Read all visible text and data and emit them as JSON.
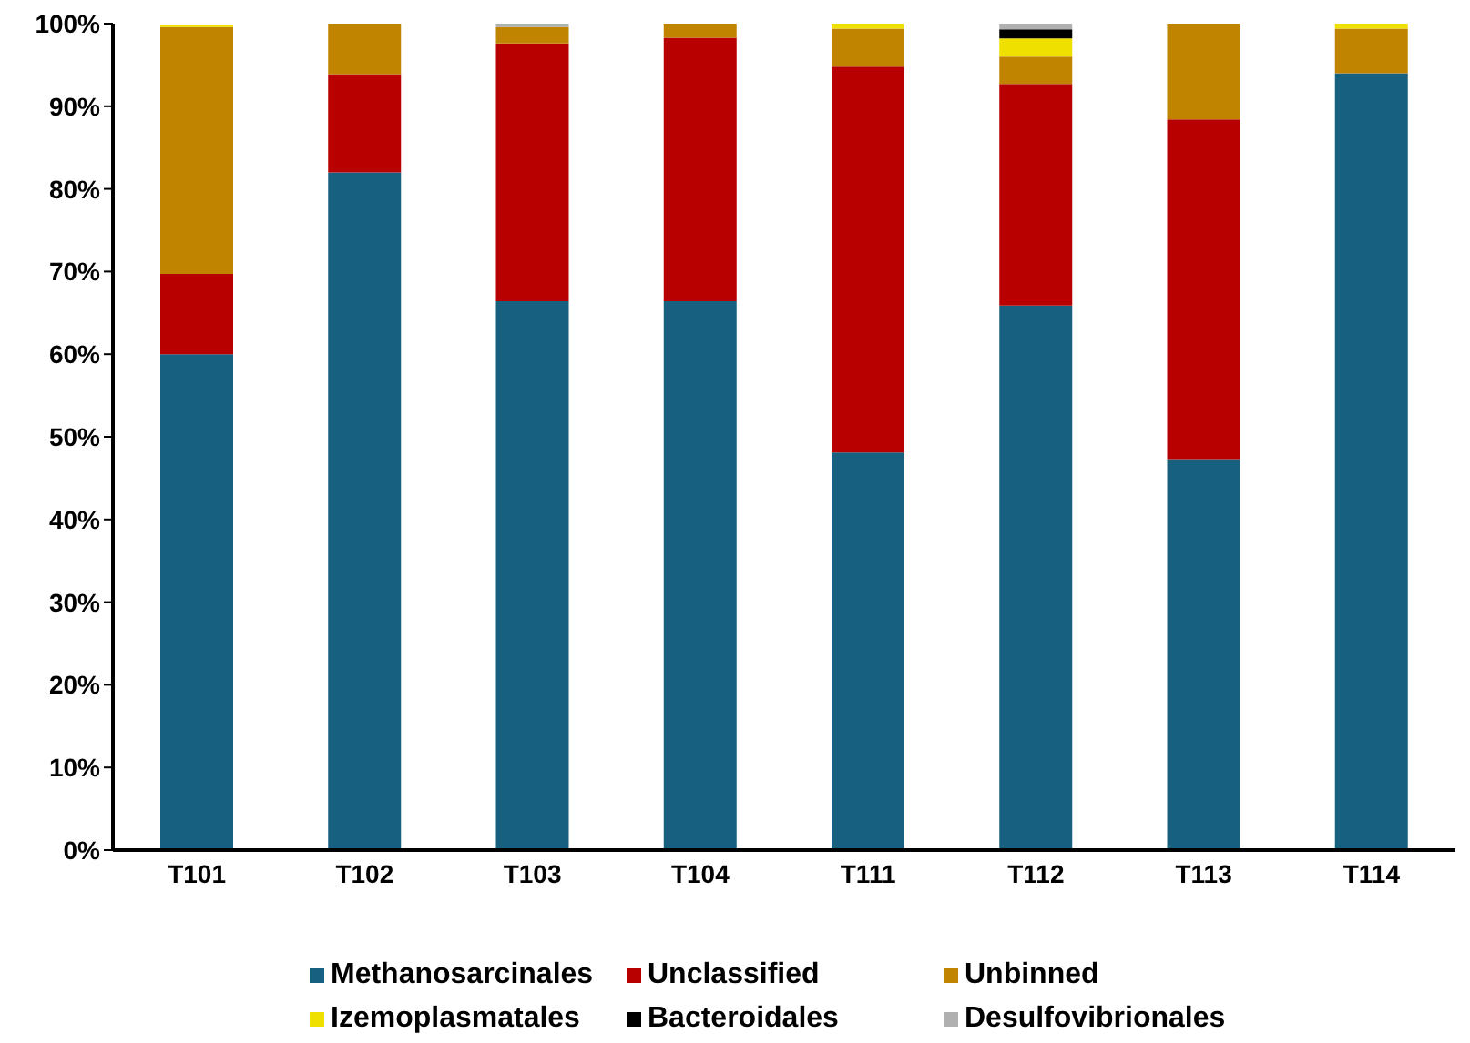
{
  "chart_data": {
    "type": "bar",
    "stacked": true,
    "categories": [
      "T101",
      "T102",
      "T103",
      "T104",
      "T111",
      "T112",
      "T113",
      "T114"
    ],
    "series": [
      {
        "name": "Methanosarcinales",
        "color": "#17607f",
        "values": [
          60.0,
          82.0,
          66.4,
          66.4,
          48.1,
          65.9,
          47.3,
          94.0
        ]
      },
      {
        "name": "Unclassified",
        "color": "#b80000",
        "values": [
          9.7,
          11.9,
          31.2,
          31.9,
          46.7,
          26.8,
          41.1,
          0
        ]
      },
      {
        "name": "Unbinned",
        "color": "#c08400",
        "values": [
          29.9,
          6.1,
          2.0,
          1.7,
          4.6,
          3.3,
          11.6,
          5.4
        ]
      },
      {
        "name": "Izemoplasmatales",
        "color": "#f0e000",
        "values": [
          0.3,
          0,
          0,
          0,
          0.6,
          2.2,
          0,
          0.6
        ]
      },
      {
        "name": "Bacteroidales",
        "color": "#000000",
        "values": [
          0,
          0,
          0,
          0,
          0,
          1.1,
          0,
          0
        ]
      },
      {
        "name": "Desulfovibrionales",
        "color": "#b0b0b0",
        "values": [
          null,
          0,
          0.4,
          0,
          0,
          0.7,
          0,
          0
        ]
      }
    ],
    "ylim": [
      0,
      100
    ],
    "yticks": [
      {
        "value": 0,
        "label": "0%"
      },
      {
        "value": 10,
        "label": "10%"
      },
      {
        "value": 20,
        "label": "20%"
      },
      {
        "value": 30,
        "label": "30%"
      },
      {
        "value": 40,
        "label": "40%"
      },
      {
        "value": 50,
        "label": "50%"
      },
      {
        "value": 60,
        "label": "60%"
      },
      {
        "value": 70,
        "label": "70%"
      },
      {
        "value": 80,
        "label": "80%"
      },
      {
        "value": 90,
        "label": "90%"
      },
      {
        "value": 100,
        "label": "100%"
      }
    ],
    "grid": false,
    "legend": "bottom"
  }
}
